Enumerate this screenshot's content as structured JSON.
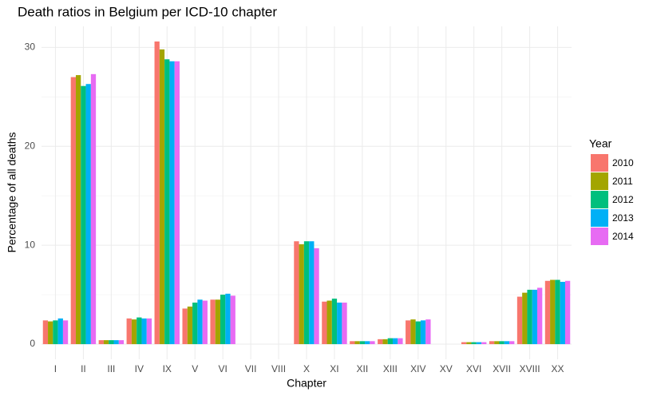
{
  "chart_data": {
    "type": "bar",
    "title": "Death ratios in Belgium per ICD-10 chapter",
    "x_label": "Chapter",
    "y_label": "Percentage of all deaths",
    "legend_title": "Year",
    "categories": [
      "I",
      "II",
      "III",
      "IV",
      "IX",
      "V",
      "VI",
      "VII",
      "VIII",
      "X",
      "XI",
      "XII",
      "XIII",
      "XIV",
      "XV",
      "XVI",
      "XVII",
      "XVIII",
      "XX"
    ],
    "series": [
      {
        "name": "2010",
        "color": "#f8766d",
        "values": [
          2.4,
          27.0,
          0.4,
          2.6,
          30.6,
          3.6,
          4.5,
          0,
          0,
          10.4,
          4.3,
          0.3,
          0.5,
          2.4,
          0,
          0.2,
          0.3,
          4.8,
          6.4
        ]
      },
      {
        "name": "2011",
        "color": "#a3a500",
        "values": [
          2.3,
          27.2,
          0.4,
          2.5,
          29.8,
          3.8,
          4.5,
          0,
          0,
          10.1,
          4.4,
          0.3,
          0.5,
          2.5,
          0,
          0.2,
          0.3,
          5.2,
          6.5
        ]
      },
      {
        "name": "2012",
        "color": "#00bf7d",
        "values": [
          2.4,
          26.1,
          0.4,
          2.7,
          28.8,
          4.2,
          5.0,
          0,
          0,
          10.4,
          4.6,
          0.3,
          0.6,
          2.3,
          0,
          0.2,
          0.3,
          5.5,
          6.5
        ]
      },
      {
        "name": "2013",
        "color": "#00b0f6",
        "values": [
          2.6,
          26.3,
          0.4,
          2.6,
          28.6,
          4.5,
          5.1,
          0,
          0,
          10.4,
          4.2,
          0.3,
          0.6,
          2.4,
          0,
          0.2,
          0.3,
          5.5,
          6.3
        ]
      },
      {
        "name": "2014",
        "color": "#e76bf3",
        "values": [
          2.4,
          27.3,
          0.4,
          2.6,
          28.6,
          4.4,
          4.9,
          0,
          0,
          9.7,
          4.2,
          0.3,
          0.6,
          2.5,
          0,
          0.2,
          0.3,
          5.7,
          6.4
        ]
      }
    ],
    "ylim": [
      -1.53,
      32.13
    ],
    "yticks": [
      0,
      10,
      20,
      30
    ],
    "grid": true
  }
}
